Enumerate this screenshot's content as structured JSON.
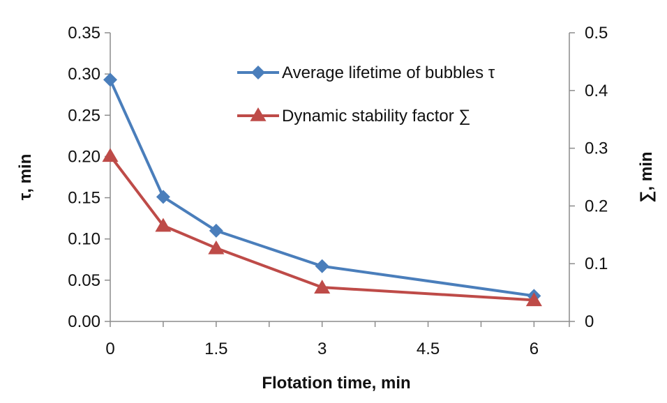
{
  "chart_data": {
    "type": "line",
    "xlabel": "Flotation time, min",
    "ylabel_left": "τ, min",
    "ylabel_right": "∑, min",
    "x_ticks": [
      "0",
      "1.5",
      "3",
      "4.5",
      "6"
    ],
    "y_left_ticks": [
      "0.00",
      "0.05",
      "0.10",
      "0.15",
      "0.20",
      "0.25",
      "0.30",
      "0.35"
    ],
    "y_right_ticks": [
      "0",
      "0.1",
      "0.2",
      "0.3",
      "0.4",
      "0.5"
    ],
    "xlim": [
      0,
      6.5
    ],
    "ylim_left": [
      0,
      0.35
    ],
    "ylim_right": [
      0,
      0.5
    ],
    "legend_position": "top-right",
    "grid": false,
    "series": [
      {
        "name": "Average lifetime of bubbles τ",
        "axis": "left",
        "marker": "diamond",
        "color": "#4A7EBB",
        "x": [
          0,
          0.75,
          1.5,
          3,
          6
        ],
        "values": [
          0.293,
          0.151,
          0.11,
          0.067,
          0.031
        ]
      },
      {
        "name": "Dynamic stability factor ∑",
        "axis": "right",
        "marker": "triangle",
        "color": "#BE4B48",
        "x": [
          0,
          0.75,
          1.5,
          3,
          6
        ],
        "values": [
          0.287,
          0.166,
          0.127,
          0.059,
          0.037
        ]
      }
    ]
  }
}
